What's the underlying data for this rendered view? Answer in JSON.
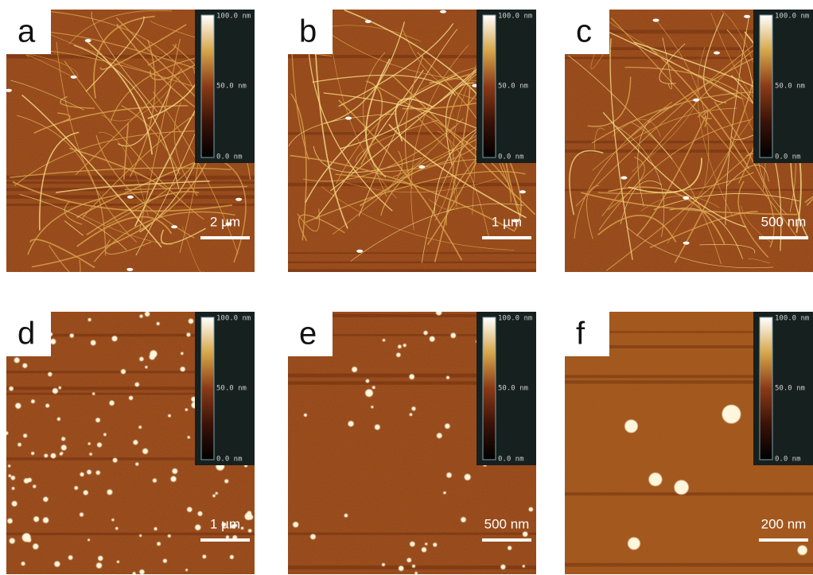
{
  "panels": [
    {
      "label": "a",
      "scale_bar": "2 µm",
      "colorbar": {
        "top": "100.0 nm",
        "middle": "50.0 nm",
        "bottom": "0.0 nm"
      }
    },
    {
      "label": "b",
      "scale_bar": "1 µm",
      "colorbar": {
        "top": "100.0 nm",
        "middle": "50.0 nm",
        "bottom": "0.0 nm"
      }
    },
    {
      "label": "c",
      "scale_bar": "500 nm",
      "colorbar": {
        "top": "100.0 nm",
        "middle": "50.0 nm",
        "bottom": "0.0 nm"
      }
    },
    {
      "label": "d",
      "scale_bar": "1 µm",
      "colorbar": {
        "top": "100.0 nm",
        "middle": "50.0 nm",
        "bottom": "0.0 nm"
      }
    },
    {
      "label": "e",
      "scale_bar": "500 nm",
      "colorbar": {
        "top": "100.0 nm",
        "middle": "50.0 nm",
        "bottom": "0.0 nm"
      }
    },
    {
      "label": "f",
      "scale_bar": "200 nm",
      "colorbar": {
        "top": "100.0 nm",
        "middle": "50.0 nm",
        "bottom": "0.0 nm"
      }
    }
  ]
}
